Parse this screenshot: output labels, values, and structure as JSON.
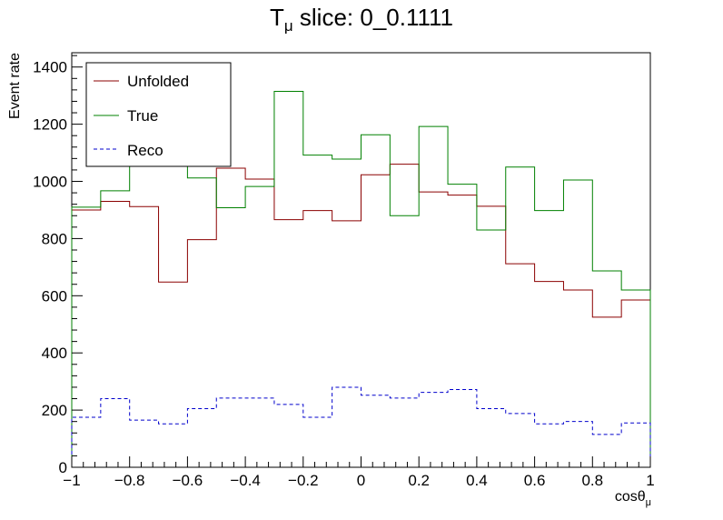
{
  "chart_data": {
    "type": "step-histogram",
    "title_main": "T",
    "title_sub": "μ",
    "title_rest": " slice: 0_0.1111",
    "xlabel_main": "cosθ",
    "xlabel_sub": "μ",
    "ylabel": "Event rate",
    "xlim": [
      -1,
      1
    ],
    "ylim": [
      0,
      1450
    ],
    "x_ticks": [
      -1,
      -0.8,
      -0.6,
      -0.4,
      -0.2,
      0,
      0.2,
      0.4,
      0.6,
      0.8,
      1
    ],
    "x_tick_labels": [
      "−1",
      "−0.8",
      "−0.6",
      "−0.4",
      "−0.2",
      "0",
      "0.2",
      "0.4",
      "0.6",
      "0.8",
      "1"
    ],
    "y_ticks": [
      0,
      200,
      400,
      600,
      800,
      1000,
      1200,
      1400
    ],
    "y_tick_labels": [
      "0",
      "200",
      "400",
      "600",
      "800",
      "1000",
      "1200",
      "1400"
    ],
    "bin_edges": [
      -1,
      -0.9,
      -0.8,
      -0.7,
      -0.6,
      -0.5,
      -0.4,
      -0.3,
      -0.2,
      -0.1,
      0,
      0.1,
      0.2,
      0.3,
      0.4,
      0.5,
      0.6,
      0.7,
      0.8,
      0.9,
      1
    ],
    "series": [
      {
        "name": "Unfolded",
        "color": "#8b0000",
        "dashed": false,
        "values": [
          900,
          930,
          912,
          648,
          796,
          1046,
          1008,
          866,
          898,
          862,
          1023,
          1060,
          963,
          952,
          913,
          712,
          650,
          620,
          525,
          585
        ]
      },
      {
        "name": "True",
        "color": "#008000",
        "dashed": false,
        "values": [
          910,
          967,
          1080,
          1090,
          1012,
          908,
          982,
          1315,
          1092,
          1078,
          1163,
          880,
          1192,
          990,
          830,
          1050,
          898,
          1005,
          687,
          620
        ]
      },
      {
        "name": "Reco",
        "color": "#0000cc",
        "dashed": true,
        "values": [
          175,
          240,
          165,
          152,
          205,
          242,
          242,
          220,
          175,
          280,
          252,
          242,
          262,
          272,
          205,
          188,
          152,
          160,
          115,
          155
        ]
      }
    ],
    "legend_position": "top-left"
  }
}
